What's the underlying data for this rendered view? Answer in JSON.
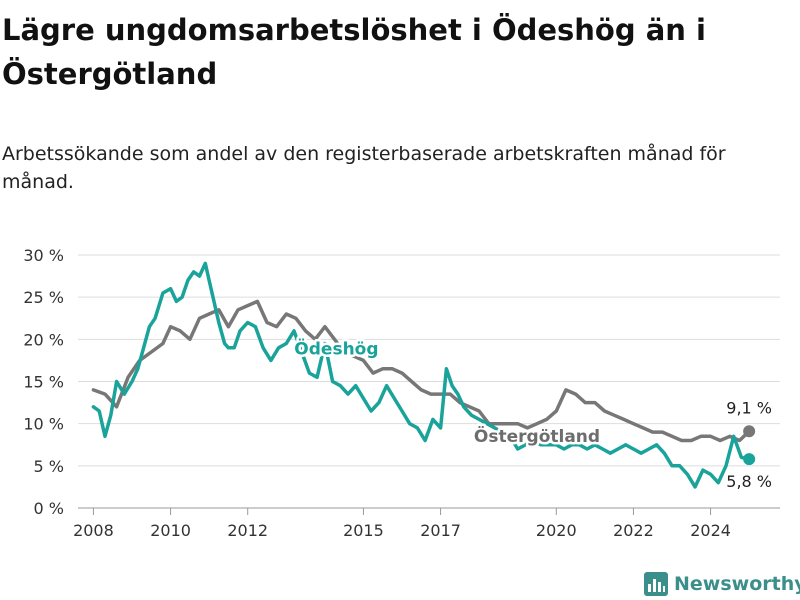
{
  "title": "Lägre ungdomsarbetslöshet i Ödeshög än i Östergötland",
  "subtitle": "Arbetssökande som andel av den registerbaserade arbetskraften månad för månad.",
  "brand": {
    "name": "Newsworthy",
    "icon": "bar-chart-logo-icon",
    "color": "#3a8f8a"
  },
  "chart_data": {
    "type": "line",
    "title": "Lägre ungdomsarbetslöshet i Ödeshög än i Östergötland",
    "xlabel": "",
    "ylabel": "",
    "xlim": [
      2007.6,
      2025.8
    ],
    "ylim": [
      0,
      30
    ],
    "grid": true,
    "legend": "direct labels on lines",
    "x_ticks": [
      2008,
      2010,
      2012,
      2015,
      2017,
      2020,
      2022,
      2024
    ],
    "x_tick_labels": [
      "2008",
      "2010",
      "2012",
      "2015",
      "2017",
      "2020",
      "2022",
      "2024"
    ],
    "y_ticks": [
      0,
      5,
      10,
      15,
      20,
      25,
      30
    ],
    "y_tick_labels": [
      "0 %",
      "5 %",
      "10 %",
      "15 %",
      "20 %",
      "25 %",
      "30 %"
    ],
    "series": [
      {
        "name": "Östergötland",
        "color": "#777777",
        "label_color": "#6d6d6d",
        "end_label": "9,1 %",
        "x": [
          2008.0,
          2008.3,
          2008.6,
          2008.9,
          2009.2,
          2009.5,
          2009.8,
          2010.0,
          2010.25,
          2010.5,
          2010.75,
          2011.0,
          2011.25,
          2011.5,
          2011.75,
          2012.0,
          2012.25,
          2012.5,
          2012.75,
          2013.0,
          2013.25,
          2013.5,
          2013.75,
          2014.0,
          2014.25,
          2014.5,
          2014.75,
          2015.0,
          2015.25,
          2015.5,
          2015.75,
          2016.0,
          2016.25,
          2016.5,
          2016.75,
          2017.0,
          2017.25,
          2017.5,
          2017.75,
          2018.0,
          2018.25,
          2018.5,
          2018.75,
          2019.0,
          2019.25,
          2019.5,
          2019.75,
          2020.0,
          2020.25,
          2020.5,
          2020.75,
          2021.0,
          2021.25,
          2021.5,
          2021.75,
          2022.0,
          2022.25,
          2022.5,
          2022.75,
          2023.0,
          2023.25,
          2023.5,
          2023.75,
          2024.0,
          2024.25,
          2024.5,
          2024.75,
          2025.0
        ],
        "values": [
          14.0,
          13.5,
          12.0,
          15.5,
          17.5,
          18.5,
          19.5,
          21.5,
          21.0,
          20.0,
          22.5,
          23.0,
          23.5,
          21.5,
          23.5,
          24.0,
          24.5,
          22.0,
          21.5,
          23.0,
          22.5,
          21.0,
          20.0,
          21.5,
          20.0,
          18.5,
          18.0,
          17.5,
          16.0,
          16.5,
          16.5,
          16.0,
          15.0,
          14.0,
          13.5,
          13.5,
          13.5,
          12.5,
          12.0,
          11.5,
          10.0,
          10.0,
          10.0,
          10.0,
          9.5,
          10.0,
          10.5,
          11.5,
          14.0,
          13.5,
          12.5,
          12.5,
          11.5,
          11.0,
          10.5,
          10.0,
          9.5,
          9.0,
          9.0,
          8.5,
          8.0,
          8.0,
          8.5,
          8.5,
          8.0,
          8.5,
          8.0,
          9.1
        ]
      },
      {
        "name": "Ödeshög",
        "color": "#1aa39a",
        "label_color": "#1aa39a",
        "end_label": "5,8 %",
        "x": [
          2008.0,
          2008.15,
          2008.3,
          2008.45,
          2008.6,
          2008.8,
          2009.0,
          2009.15,
          2009.3,
          2009.45,
          2009.6,
          2009.8,
          2010.0,
          2010.15,
          2010.3,
          2010.45,
          2010.6,
          2010.75,
          2010.9,
          2011.0,
          2011.1,
          2011.25,
          2011.4,
          2011.5,
          2011.65,
          2011.8,
          2012.0,
          2012.2,
          2012.4,
          2012.6,
          2012.8,
          2013.0,
          2013.2,
          2013.4,
          2013.6,
          2013.8,
          2014.0,
          2014.2,
          2014.4,
          2014.6,
          2014.8,
          2015.0,
          2015.2,
          2015.4,
          2015.6,
          2015.8,
          2016.0,
          2016.2,
          2016.4,
          2016.6,
          2016.8,
          2017.0,
          2017.15,
          2017.3,
          2017.45,
          2017.6,
          2017.8,
          2018.0,
          2018.2,
          2018.4,
          2018.6,
          2018.8,
          2019.0,
          2019.2,
          2019.4,
          2019.6,
          2019.8,
          2020.0,
          2020.2,
          2020.4,
          2020.6,
          2020.8,
          2021.0,
          2021.2,
          2021.4,
          2021.6,
          2021.8,
          2022.0,
          2022.2,
          2022.4,
          2022.6,
          2022.8,
          2023.0,
          2023.2,
          2023.4,
          2023.6,
          2023.8,
          2024.0,
          2024.2,
          2024.4,
          2024.6,
          2024.8,
          2025.0
        ],
        "values": [
          12.0,
          11.5,
          8.5,
          11.0,
          15.0,
          13.5,
          15.0,
          16.5,
          19.0,
          21.5,
          22.5,
          25.5,
          26.0,
          24.5,
          25.0,
          27.0,
          28.0,
          27.5,
          29.0,
          27.0,
          25.0,
          22.0,
          19.5,
          19.0,
          19.0,
          21.0,
          22.0,
          21.5,
          19.0,
          17.5,
          19.0,
          19.5,
          21.0,
          18.5,
          16.0,
          15.5,
          19.5,
          15.0,
          14.5,
          13.5,
          14.5,
          13.0,
          11.5,
          12.5,
          14.5,
          13.0,
          11.5,
          10.0,
          9.5,
          8.0,
          10.5,
          9.5,
          16.5,
          14.5,
          13.5,
          12.0,
          11.0,
          10.5,
          10.0,
          9.5,
          9.0,
          8.5,
          7.0,
          7.5,
          8.0,
          7.5,
          7.5,
          7.5,
          7.0,
          7.5,
          7.5,
          7.0,
          7.5,
          7.0,
          6.5,
          7.0,
          7.5,
          7.0,
          6.5,
          7.0,
          7.5,
          6.5,
          5.0,
          5.0,
          4.0,
          2.5,
          4.5,
          4.0,
          3.0,
          5.0,
          8.5,
          6.0,
          5.8
        ]
      }
    ],
    "annotations": [
      {
        "text": "Ödeshög",
        "series": "Ödeshög"
      },
      {
        "text": "Östergötland",
        "series": "Östergötland"
      }
    ]
  }
}
